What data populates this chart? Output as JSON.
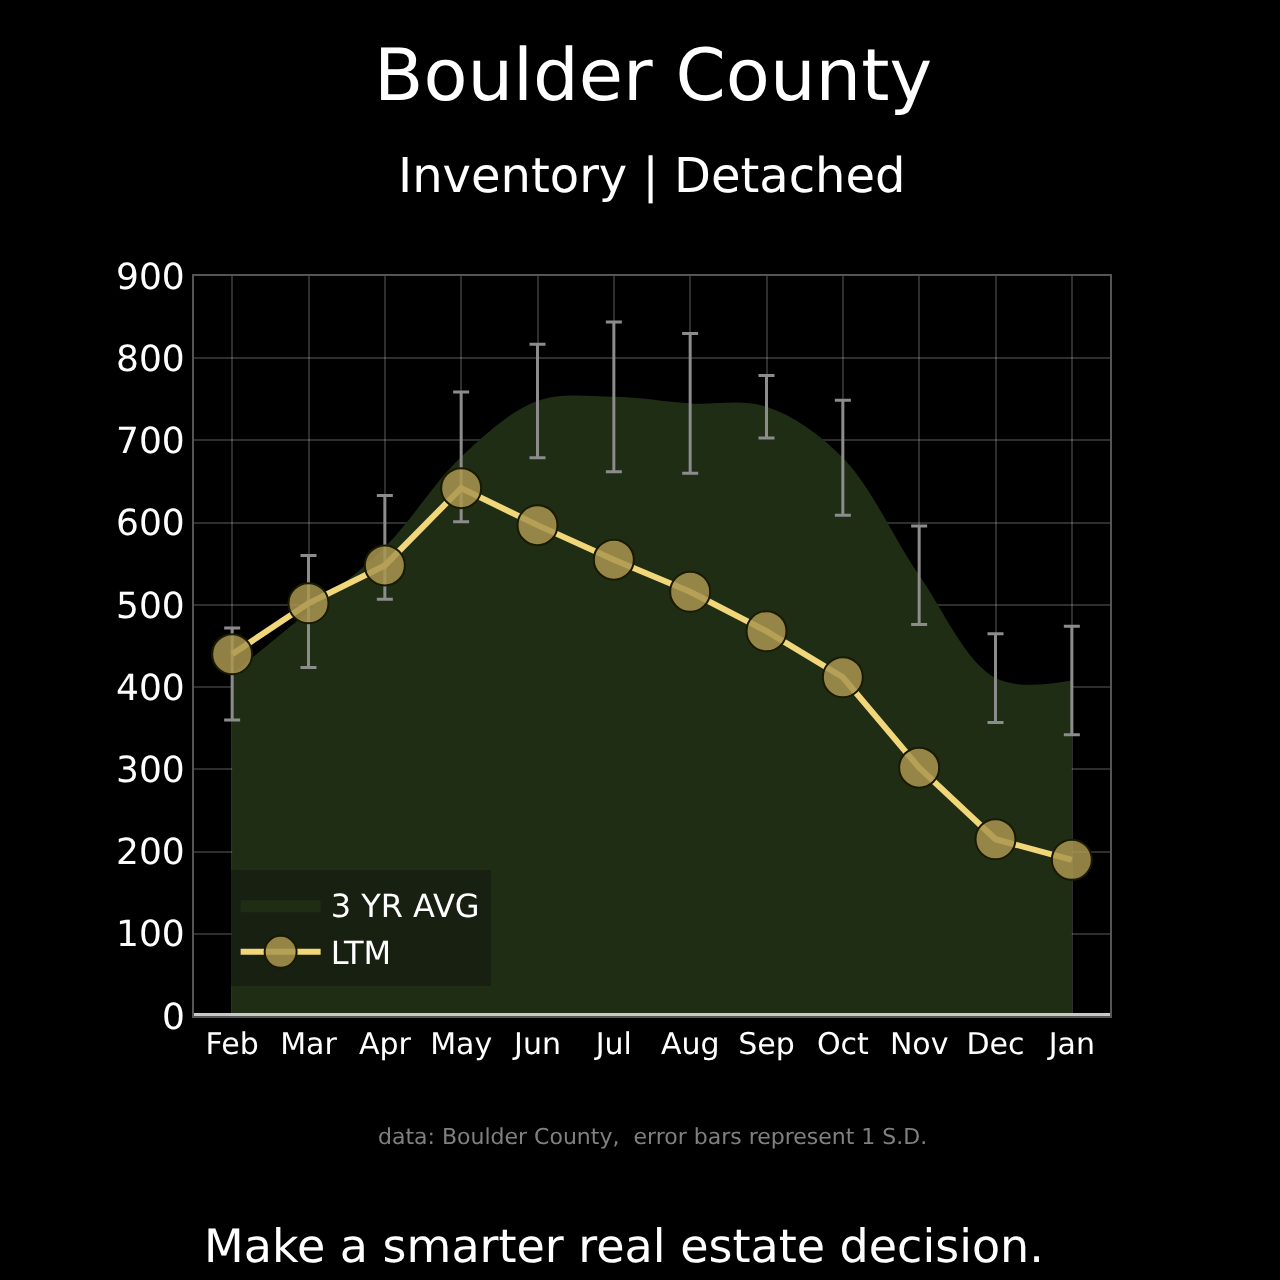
{
  "chart_data": {
    "type": "line",
    "title": "Boulder County",
    "subtitle": "Inventory | Detached",
    "categories": [
      "Feb",
      "Mar",
      "Apr",
      "May",
      "Jun",
      "Jul",
      "Aug",
      "Sep",
      "Oct",
      "Nov",
      "Dec",
      "Jan"
    ],
    "series": [
      {
        "name": "3 YR AVG",
        "type": "area",
        "color": "#1e2d14",
        "values": [
          416,
          492,
          570,
          680,
          748,
          753,
          745,
          741,
          679,
          536,
          411,
          408
        ],
        "errors": [
          56,
          68,
          63,
          79,
          69,
          91,
          85,
          38,
          70,
          60,
          54,
          66
        ]
      },
      {
        "name": "LTM",
        "color": "#f2d77a",
        "marker": "circle",
        "line_style": "solid",
        "values": [
          440,
          502,
          548,
          642,
          597,
          555,
          516,
          468,
          412,
          302,
          215,
          190
        ]
      }
    ],
    "ylim": [
      0,
      900
    ],
    "yticks": [
      0,
      100,
      200,
      300,
      400,
      500,
      600,
      700,
      800,
      900
    ],
    "grid": true,
    "legend": "bottom left",
    "annotations": [
      "data: Boulder County,  error bars represent 1 S.D.",
      "Make a smarter real estate decision."
    ]
  }
}
